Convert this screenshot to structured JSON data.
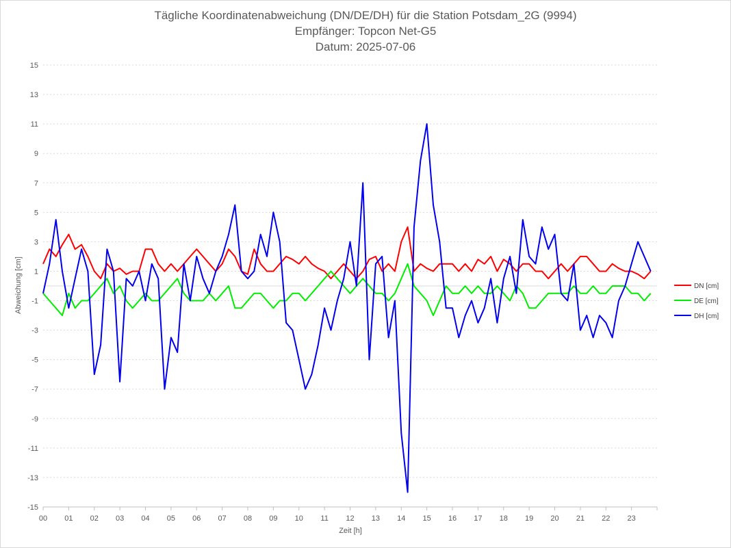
{
  "chart_data": {
    "type": "line",
    "title_lines": [
      "Tägliche Koordinatenabweichung (DN/DE/DH) für die Station Potsdam_2G (9994)",
      "Empfänger: Topcon Net-G5",
      "Datum: 2025-07-06"
    ],
    "xlabel": "Zeit [h]",
    "ylabel": "Abweichung [cm]",
    "xlim": [
      0,
      24
    ],
    "ylim": [
      -15,
      15
    ],
    "x_ticks": [
      "00",
      "01",
      "02",
      "03",
      "04",
      "05",
      "06",
      "07",
      "08",
      "09",
      "10",
      "11",
      "12",
      "13",
      "14",
      "15",
      "16",
      "17",
      "18",
      "19",
      "20",
      "21",
      "22",
      "23"
    ],
    "y_ticks": [
      15,
      13,
      11,
      9,
      7,
      5,
      3,
      1,
      -1,
      -3,
      -5,
      -7,
      -9,
      -11,
      -13,
      -15
    ],
    "grid": "horizontal dashed",
    "legend_position": "right",
    "x": [
      0,
      0.25,
      0.5,
      0.75,
      1,
      1.25,
      1.5,
      1.75,
      2,
      2.25,
      2.5,
      2.75,
      3,
      3.25,
      3.5,
      3.75,
      4,
      4.25,
      4.5,
      4.75,
      5,
      5.25,
      5.5,
      5.75,
      6,
      6.25,
      6.5,
      6.75,
      7,
      7.25,
      7.5,
      7.75,
      8,
      8.25,
      8.5,
      8.75,
      9,
      9.25,
      9.5,
      9.75,
      10,
      10.25,
      10.5,
      10.75,
      11,
      11.25,
      11.5,
      11.75,
      12,
      12.25,
      12.5,
      12.75,
      13,
      13.25,
      13.5,
      13.75,
      14,
      14.25,
      14.5,
      14.75,
      15,
      15.25,
      15.5,
      15.75,
      16,
      16.25,
      16.5,
      16.75,
      17,
      17.25,
      17.5,
      17.75,
      18,
      18.25,
      18.5,
      18.75,
      19,
      19.25,
      19.5,
      19.75,
      20,
      20.25,
      20.5,
      20.75,
      21,
      21.25,
      21.5,
      21.75,
      22,
      22.25,
      22.5,
      22.75,
      23,
      23.25,
      23.5,
      23.75
    ],
    "series": [
      {
        "name": "DN [cm]",
        "color": "#ff0000",
        "values": [
          1.5,
          2.5,
          2.0,
          2.8,
          3.5,
          2.5,
          2.8,
          2.0,
          1.0,
          0.5,
          1.5,
          1.0,
          1.2,
          0.8,
          1.0,
          1.0,
          2.5,
          2.5,
          1.5,
          1.0,
          1.5,
          1.0,
          1.5,
          2.0,
          2.5,
          2.0,
          1.5,
          1.0,
          1.5,
          2.5,
          2.0,
          1.0,
          0.8,
          2.5,
          1.5,
          1.0,
          1.0,
          1.5,
          2.0,
          1.8,
          1.5,
          2.0,
          1.5,
          1.2,
          1.0,
          0.5,
          1.0,
          1.5,
          1.0,
          0.5,
          1.0,
          1.8,
          2.0,
          1.0,
          1.5,
          1.0,
          3.0,
          4.0,
          1.0,
          1.5,
          1.2,
          1.0,
          1.5,
          1.5,
          1.5,
          1.0,
          1.5,
          1.0,
          1.8,
          1.5,
          2.0,
          1.0,
          1.8,
          1.5,
          1.0,
          1.5,
          1.5,
          1.0,
          1.0,
          0.5,
          1.0,
          1.5,
          1.0,
          1.5,
          2.0,
          2.0,
          1.5,
          1.0,
          1.0,
          1.5,
          1.2,
          1.0,
          1.0,
          0.8,
          0.5,
          1.0
        ]
      },
      {
        "name": "DE [cm]",
        "color": "#00ee00",
        "values": [
          -0.5,
          -1.0,
          -1.5,
          -2.0,
          -0.5,
          -1.5,
          -1.0,
          -1.0,
          -0.5,
          0.0,
          0.5,
          -0.5,
          0.0,
          -1.0,
          -1.5,
          -1.0,
          -0.5,
          -1.0,
          -1.0,
          -0.5,
          0.0,
          0.5,
          -0.5,
          -1.0,
          -1.0,
          -1.0,
          -0.5,
          -1.0,
          -0.5,
          0.0,
          -1.5,
          -1.5,
          -1.0,
          -0.5,
          -0.5,
          -1.0,
          -1.5,
          -1.0,
          -1.0,
          -0.5,
          -0.5,
          -1.0,
          -0.5,
          0.0,
          0.5,
          1.0,
          0.5,
          0.0,
          -0.5,
          0.0,
          0.5,
          0.0,
          -0.5,
          -0.5,
          -1.0,
          -0.5,
          0.5,
          1.5,
          0.0,
          -0.5,
          -1.0,
          -2.0,
          -1.0,
          0.0,
          -0.5,
          -0.5,
          0.0,
          -0.5,
          0.0,
          -0.5,
          -0.5,
          0.0,
          -0.5,
          -1.0,
          0.0,
          -0.5,
          -1.5,
          -1.5,
          -1.0,
          -0.5,
          -0.5,
          -0.5,
          -0.5,
          0.0,
          -0.5,
          -0.5,
          0.0,
          -0.5,
          -0.5,
          0.0,
          0.0,
          0.0,
          -0.5,
          -0.5,
          -1.0,
          -0.5
        ]
      },
      {
        "name": "DH [cm]",
        "color": "#0000ee",
        "values": [
          -0.5,
          1.5,
          4.5,
          1.0,
          -1.5,
          0.5,
          2.5,
          1.0,
          -6.0,
          -4.0,
          2.5,
          1.0,
          -6.5,
          0.5,
          0.0,
          1.0,
          -1.0,
          1.5,
          0.5,
          -7.0,
          -3.5,
          -4.5,
          1.5,
          -1.0,
          2.0,
          0.5,
          -0.5,
          1.0,
          2.0,
          3.5,
          5.5,
          1.0,
          0.5,
          1.0,
          3.5,
          2.0,
          5.0,
          3.0,
          -2.5,
          -3.0,
          -5.0,
          -7.0,
          -6.0,
          -4.0,
          -1.5,
          -3.0,
          -1.0,
          0.5,
          3.0,
          0.0,
          7.0,
          -5.0,
          1.5,
          2.0,
          -3.5,
          -1.0,
          -10.0,
          -14.0,
          4.0,
          8.5,
          11.0,
          5.5,
          3.0,
          -1.5,
          -1.5,
          -3.5,
          -2.0,
          -1.0,
          -2.5,
          -1.5,
          0.5,
          -2.5,
          0.5,
          2.0,
          -0.5,
          4.5,
          2.0,
          1.5,
          4.0,
          2.5,
          3.5,
          -0.5,
          -1.0,
          1.5,
          -3.0,
          -2.0,
          -3.5,
          -2.0,
          -2.5,
          -3.5,
          -1.0,
          0.0,
          1.5,
          3.0,
          2.0,
          1.0
        ]
      }
    ]
  }
}
